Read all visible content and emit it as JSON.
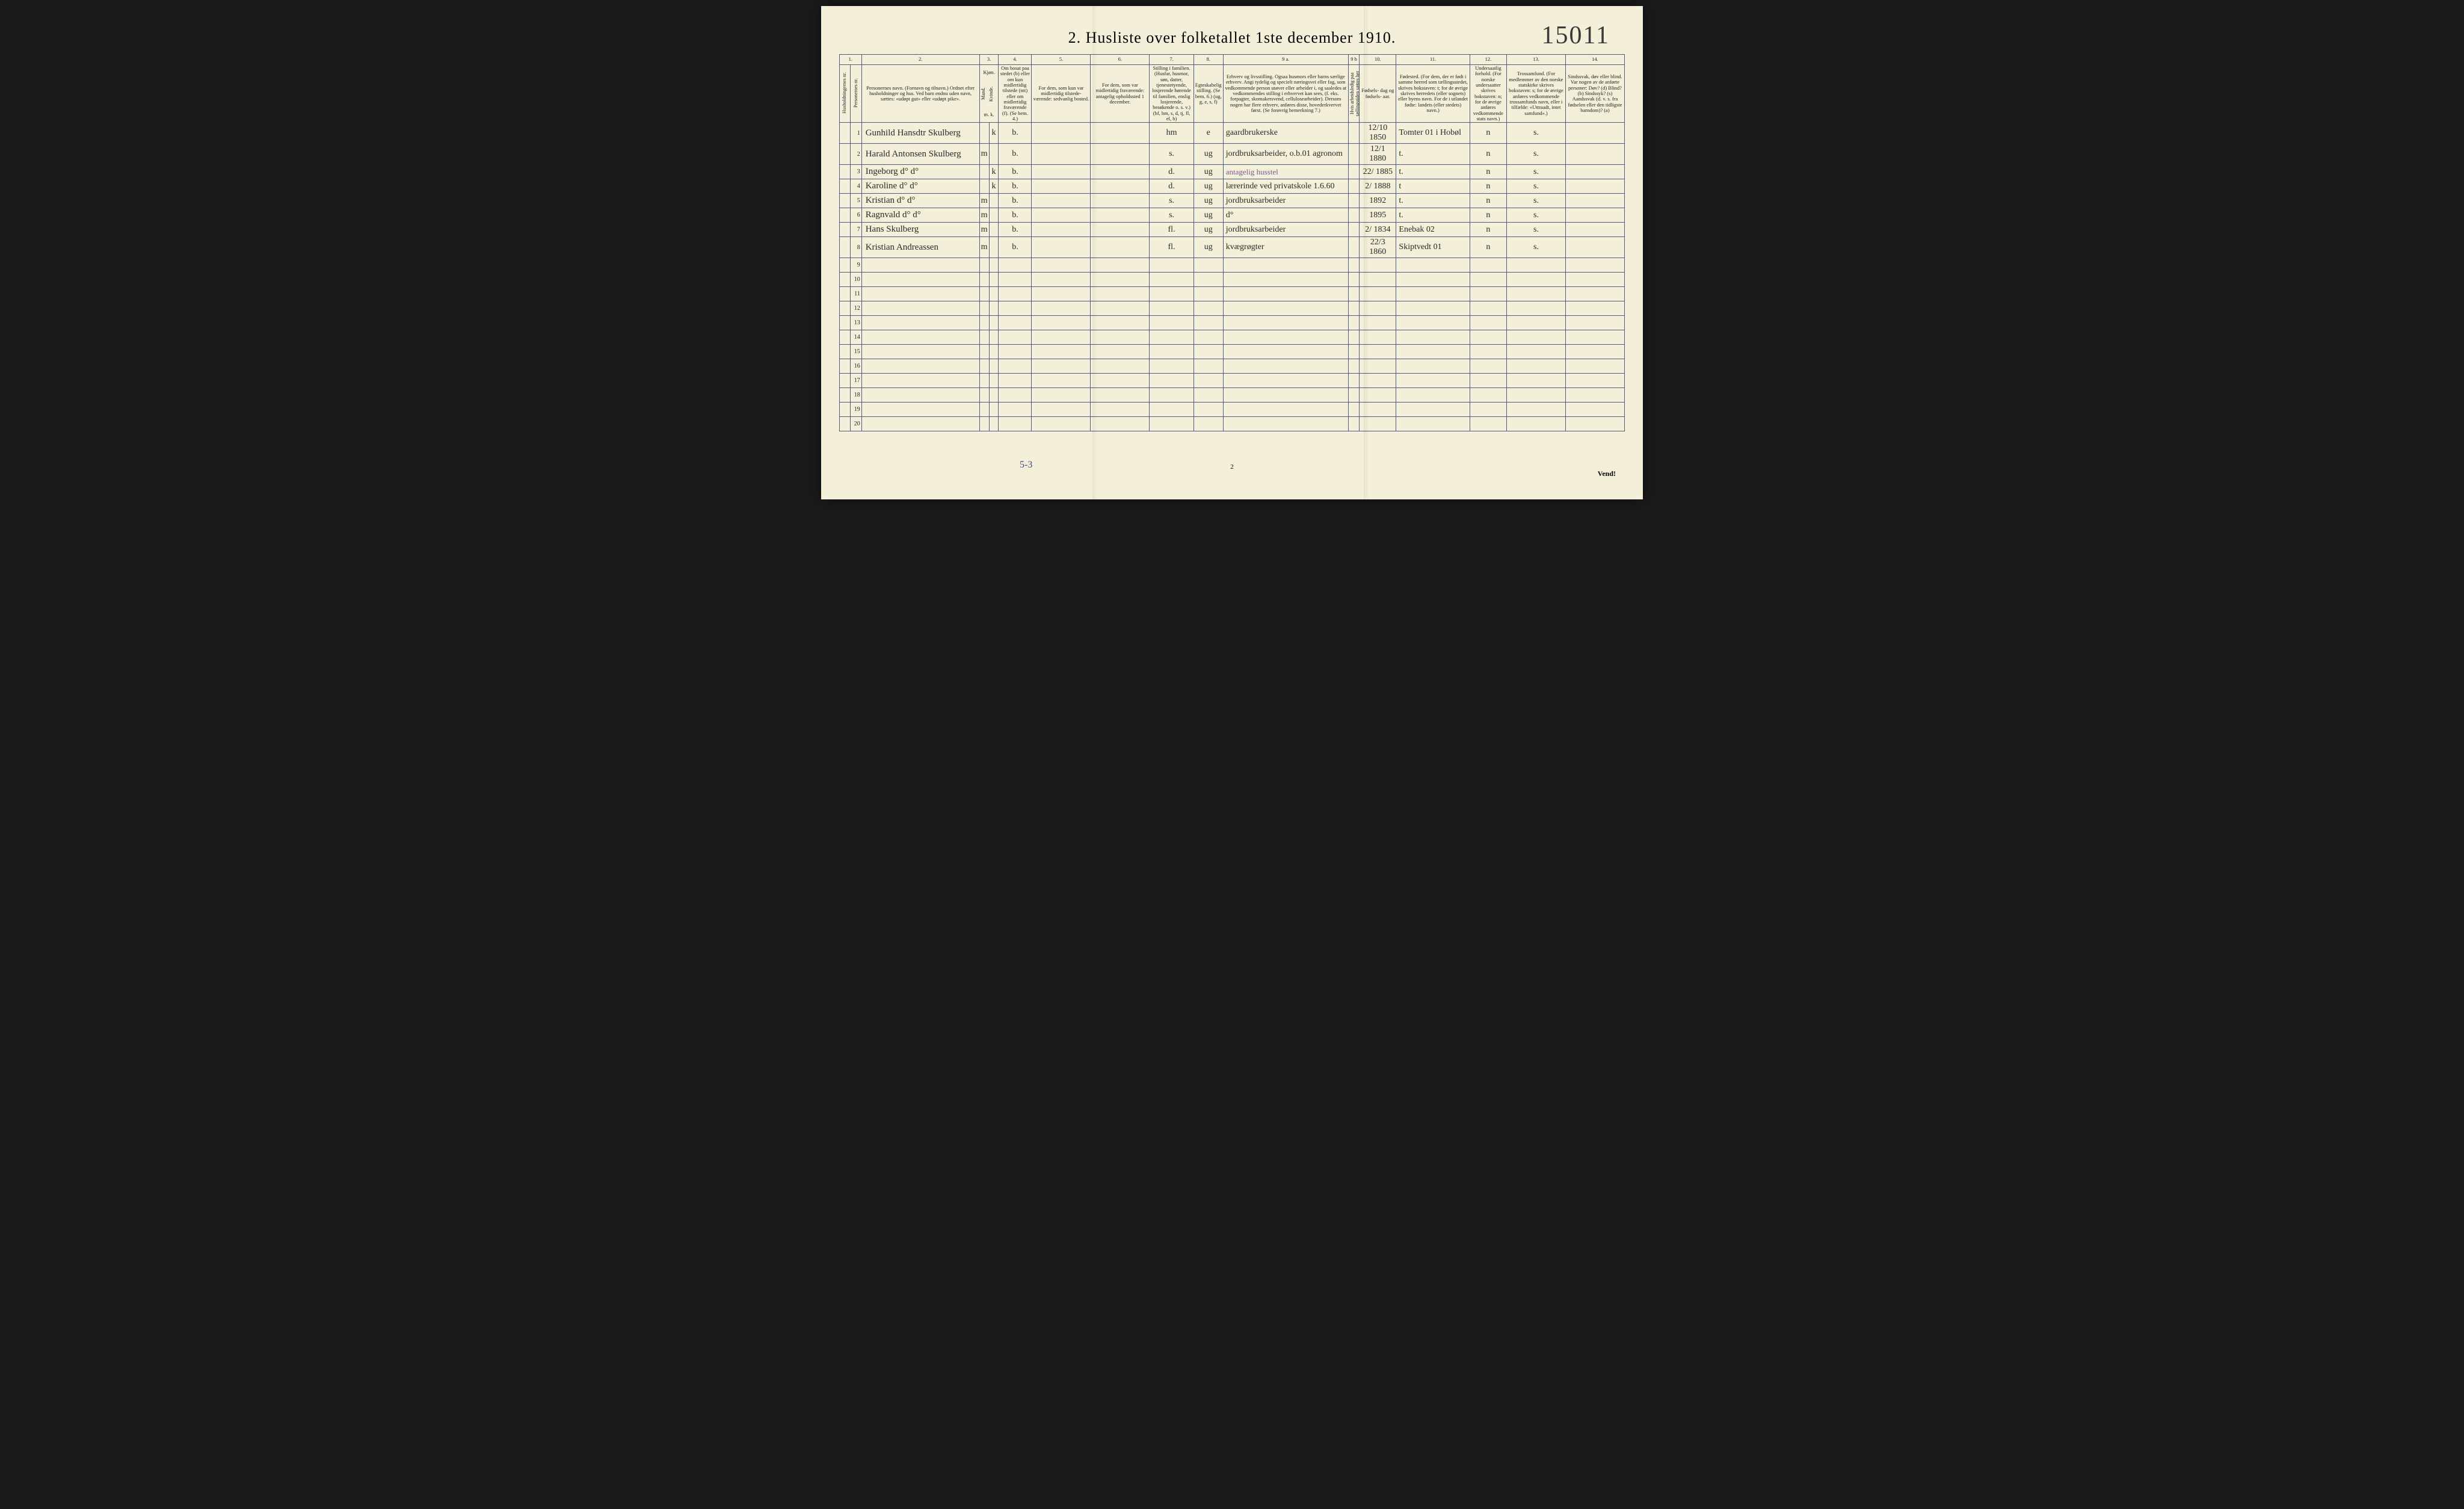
{
  "page_number_handwritten": "15011",
  "title": "2.  Husliste over folketallet 1ste december 1910.",
  "footer_left": "5-3",
  "footer_center": "2",
  "footer_right": "Vend!",
  "column_numbers": [
    "1.",
    "2.",
    "3.",
    "4.",
    "5.",
    "6.",
    "7.",
    "8.",
    "9 a.",
    "9 b",
    "10.",
    "11.",
    "12.",
    "13.",
    "14."
  ],
  "column_headers": {
    "c1a": "Husholdningernes nr.",
    "c1b": "Personernes nr.",
    "c2": "Personernes navn.\n(Fornavn og tilnavn.)\nOrdnet efter husholdninger og hus.\nVed barn endnu uden navn, sættes: «udøpt gut» eller «udøpt pike».",
    "c3a": "Kjøn.",
    "c3m": "Mand.",
    "c3k": "Kvinde.",
    "c3mk": "m.  k.",
    "c4": "Om bosat paa stedet (b) eller om kun midlertidig tilstede (mt) eller om midlertidig fraværende (f).\n(Se bem. 4.)",
    "c5": "For dem, som kun var\nmidlertidig tilstede-\nværende:\n\nsedvanlig bosted.",
    "c6": "For dem, som var\nmidlertidig\nfraværende:\n\nantagelig opholdssted\n1 december.",
    "c7": "Stilling i familien.\n(Husfar, husmor, søn, datter, tjenestetyende, losjerende hørende til familien, enslig losjerende, besøkende o. s. v.)\n(hf, hm, s, d, tj, fl, el, b)",
    "c8": "Egteskabelig stilling.\n(Se bem. 6.)\n(ug, g, e, s, f)",
    "c9a": "Erhverv og livsstilling.\nOgsaa husmors eller barns særlige erhverv. Angi tydelig og specielt næringsvei eller fag, som vedkommende person utøver eller arbeider i, og saaledes at vedkommendes stilling i erhvervet kan sees, (f. eks. forpagter, skomakersvend, cellulosearbeider). Dersom nogen har flere erhverv, anføres disse, hovederkvervet først.\n(Se forøvrig bemerkning 7.)",
    "c9b": "Hvis arbeidsledig paa tællingstiden sættes her bokstaven l.",
    "c10": "Fødsels-\ndag\nog\nfødsels-\naar.",
    "c11": "Fødested.\n(For dem, der er født i samme herred som tællingsstedet, skrives bokstaven: t; for de øvrige skrives herredets (eller sognets) eller byens navn. For de i utlandet fødte: landets (eller stedets) navn.)",
    "c12": "Undersaatlig forhold.\n(For norske undersaatter skrives bokstaven: n; for de øvrige anføres vedkommende stats navn.)",
    "c13": "Trossamfund.\n(For medlemmer av den norske statskirke skrives bokstaven: s; for de øvrige anføres vedkommende trossamfunds navn, eller i tilfælde: «Uttraadt, intet samfund».)",
    "c14": "Sindssvak, døv eller blind.\nVar nogen av de anførte personer:\nDøv?      (d)\nBlind?    (b)\nSindssyk? (s)\nAandssvak (d. v. s. fra fødselen eller den tidligste barndom)? (a)"
  },
  "rows": [
    {
      "n": "1",
      "name": "Gunhild Hansdtr Skulberg",
      "m": "",
      "k": "k",
      "b": "b.",
      "c5": "",
      "c6": "",
      "c7": "hm",
      "c8": "e",
      "c9a": "gaardbrukerske",
      "c9b": "",
      "c10": "12/10 1850",
      "c11": "Tomter 01 i Hobøl",
      "c12": "n",
      "c13": "s.",
      "c14": ""
    },
    {
      "n": "2",
      "name": "Harald Antonsen Skulberg",
      "m": "m",
      "k": "",
      "b": "b.",
      "c5": "",
      "c6": "",
      "c7": "s.",
      "c8": "ug",
      "c9a": "jordbruksarbeider, o.b.01 agronom",
      "c9b": "",
      "c10": "12/1 1880",
      "c11": "t.",
      "c12": "n",
      "c13": "s.",
      "c14": ""
    },
    {
      "n": "3",
      "name": "Ingeborg    d°        d°",
      "m": "",
      "k": "k",
      "b": "b.",
      "c5": "",
      "c6": "",
      "c7": "d.",
      "c8": "ug",
      "c9a": "antagelig husstel",
      "c9b": "",
      "c10": "22/ 1885",
      "c11": "t.",
      "c12": "n",
      "c13": "s.",
      "c14": ""
    },
    {
      "n": "4",
      "name": "Karoline    d°        d°",
      "m": "",
      "k": "k",
      "b": "b.",
      "c5": "",
      "c6": "",
      "c7": "d.",
      "c8": "ug",
      "c9a": "lærerinde ved privatskole 1.6.60",
      "c9b": "",
      "c10": "2/ 1888",
      "c11": "t",
      "c12": "n",
      "c13": "s.",
      "c14": ""
    },
    {
      "n": "5",
      "name": "Kristian    d°        d°",
      "m": "m",
      "k": "",
      "b": "b.",
      "c5": "",
      "c6": "",
      "c7": "s.",
      "c8": "ug",
      "c9a": "jordbruksarbeider",
      "c9b": "",
      "c10": " 1892",
      "c11": "t.",
      "c12": "n",
      "c13": "s.",
      "c14": ""
    },
    {
      "n": "6",
      "name": "Ragnvald   d°        d°",
      "m": "m",
      "k": "",
      "b": "b.",
      "c5": "",
      "c6": "",
      "c7": "s.",
      "c8": "ug",
      "c9a": "   d°",
      "c9b": "",
      "c10": " 1895",
      "c11": "t.",
      "c12": "n",
      "c13": "s.",
      "c14": ""
    },
    {
      "n": "7",
      "name": "Hans  Skulberg",
      "m": "m",
      "k": "",
      "b": "b.",
      "c5": "",
      "c6": "",
      "c7": "fl.",
      "c8": "ug",
      "c9a": "jordbruksarbeider",
      "c9b": "",
      "c10": "2/ 1834",
      "c11": "Enebak 02",
      "c12": "n",
      "c13": "s.",
      "c14": ""
    },
    {
      "n": "8",
      "name": "Kristian Andreassen",
      "m": "m",
      "k": "",
      "b": "b.",
      "c5": "",
      "c6": "",
      "c7": "fl.",
      "c8": "ug",
      "c9a": "kvægrøgter",
      "c9b": "",
      "c10": "22/3 1860",
      "c11": "Skiptvedt 01",
      "c12": "n",
      "c13": "s.",
      "c14": ""
    },
    {
      "n": "9"
    },
    {
      "n": "10"
    },
    {
      "n": "11"
    },
    {
      "n": "12"
    },
    {
      "n": "13"
    },
    {
      "n": "14"
    },
    {
      "n": "15"
    },
    {
      "n": "16"
    },
    {
      "n": "17"
    },
    {
      "n": "18"
    },
    {
      "n": "19"
    },
    {
      "n": "20"
    }
  ],
  "col_widths_pct": [
    1.5,
    1.5,
    16,
    1.3,
    1.3,
    4.5,
    8,
    8,
    6,
    4,
    17,
    1.5,
    5,
    10,
    5,
    8,
    8
  ]
}
